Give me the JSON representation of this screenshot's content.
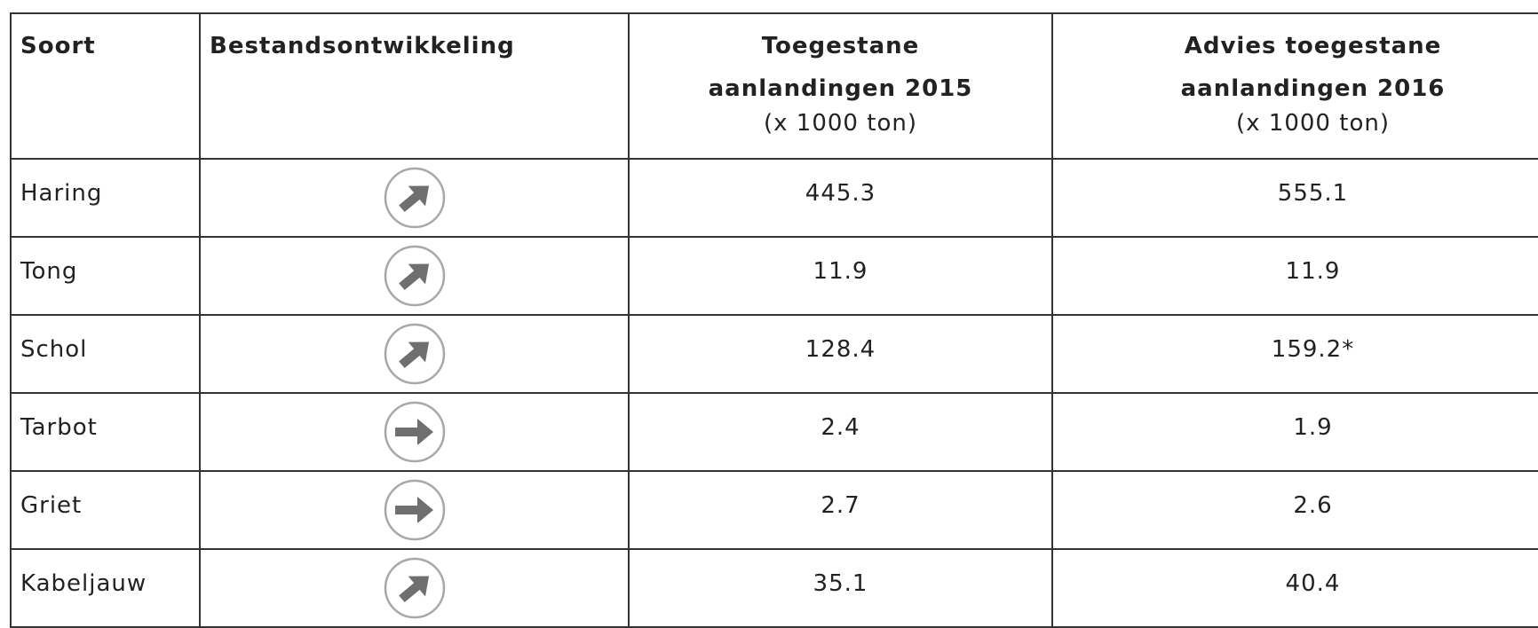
{
  "table": {
    "header": [
      {
        "title": "Soort"
      },
      {
        "title": "Bestandsontwikkeling"
      },
      {
        "title": "Toegestane aanlandingen 2015",
        "unit": "(x 1000 ton)"
      },
      {
        "title": "Advies toegestane aanlandingen 2016",
        "unit": "(x 1000 ton)"
      }
    ],
    "rows": [
      [
        "Haring",
        445.3,
        555.1
      ],
      [
        "Tong",
        11.9,
        11.9
      ],
      [
        "Schol",
        128.4,
        "159.2*"
      ],
      [
        "Tarbot",
        2.4,
        1.9
      ],
      [
        "Griet",
        2.7,
        2.6
      ],
      [
        "Kabeljauw",
        35.1,
        40.4
      ]
    ]
  }
}
